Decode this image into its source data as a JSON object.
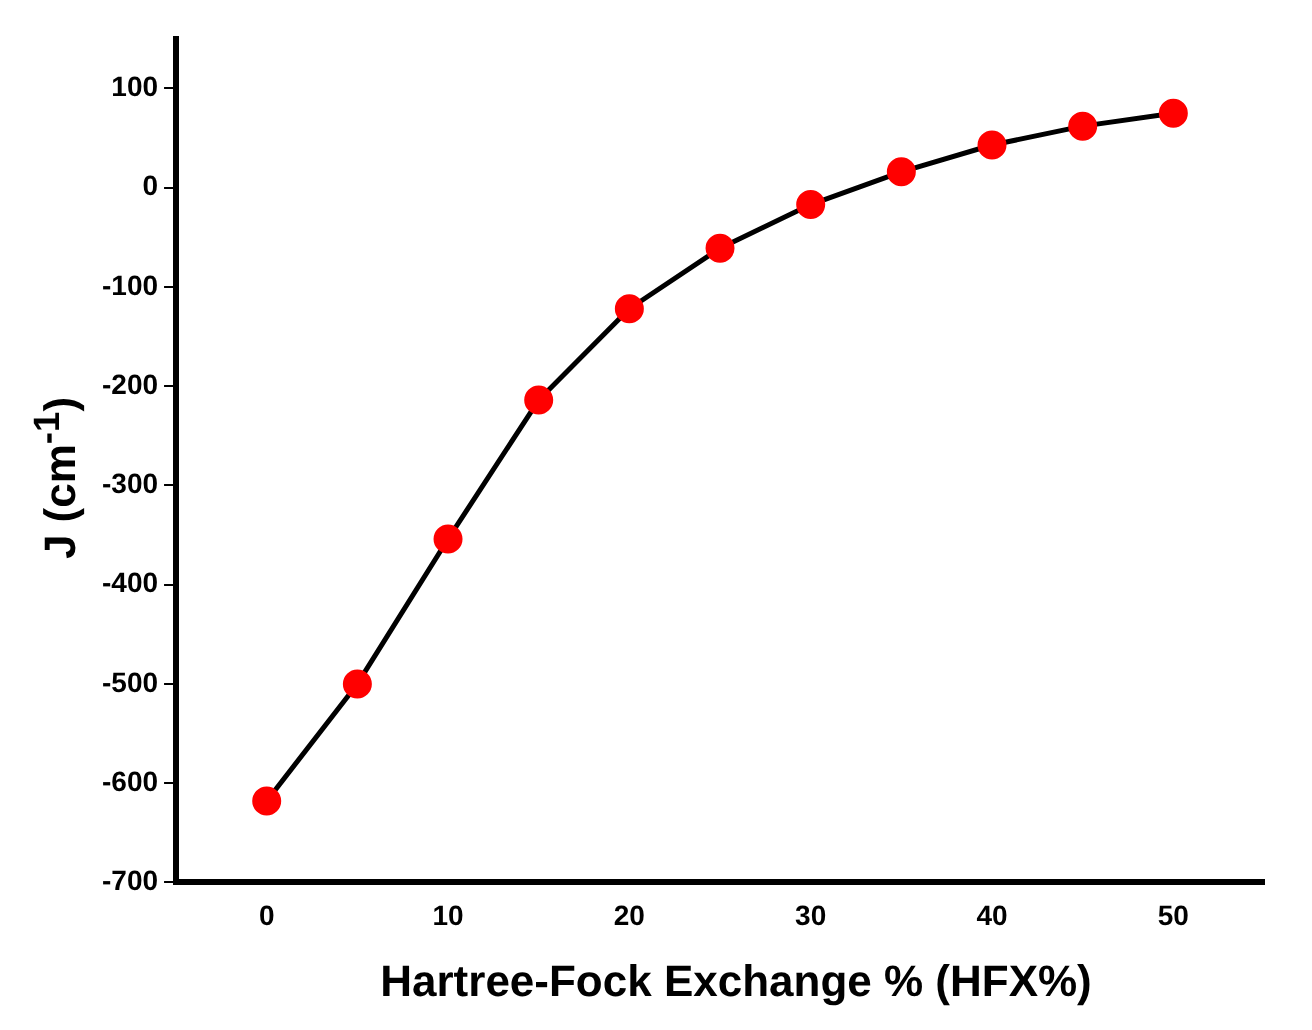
{
  "chart_data": {
    "type": "line",
    "xlabel": "Hartree-Fock Exchange % (HFX%)",
    "ylabel": "J (cm$^{-1}$)",
    "x": [
      0,
      5,
      10,
      15,
      20,
      25,
      30,
      35,
      40,
      45,
      50
    ],
    "series": [
      {
        "color": "#000000",
        "values": [
          -618,
          -500,
          -354,
          -214,
          -122,
          -61,
          -17,
          16,
          43,
          62,
          75
        ]
      }
    ],
    "marker": "circle",
    "line_style": "solid",
    "grid": false,
    "legend": false,
    "xlim": [
      -5,
      55
    ],
    "xticks": [
      0,
      10,
      20,
      30,
      40,
      50
    ],
    "ylim": [
      -700,
      150
    ],
    "yticks": [
      -700,
      -600,
      -500,
      -400,
      -300,
      -200,
      -100,
      0,
      100
    ]
  }
}
